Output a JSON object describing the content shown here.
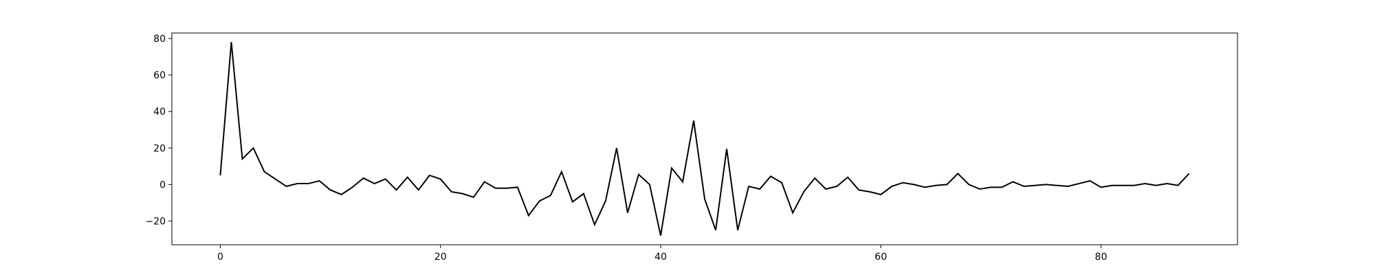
{
  "chart_data": {
    "type": "line",
    "title": "",
    "xlabel": "",
    "ylabel": "",
    "xlim": [
      -4.4,
      92.4
    ],
    "ylim": [
      -33,
      83
    ],
    "x_ticks": [
      0,
      20,
      40,
      60,
      80
    ],
    "x_tick_labels": [
      "0",
      "20",
      "40",
      "60",
      "80"
    ],
    "y_ticks": [
      -20,
      0,
      20,
      40,
      60,
      80
    ],
    "y_tick_labels": [
      "−20",
      "0",
      "20",
      "40",
      "60",
      "80"
    ],
    "grid": false,
    "line_color": "#000000",
    "series": [
      {
        "x": [
          0,
          1,
          2,
          3,
          4,
          5,
          6,
          7,
          8,
          9,
          10,
          11,
          12,
          13,
          14,
          15,
          16,
          17,
          18,
          19,
          20,
          21,
          22,
          23,
          24,
          25,
          26,
          27,
          28,
          29,
          30,
          31,
          32,
          33,
          34,
          35,
          36,
          37,
          38,
          39,
          40,
          41,
          42,
          43,
          44,
          45,
          46,
          47,
          48,
          49,
          50,
          51,
          52,
          53,
          54,
          55,
          56,
          57,
          58,
          59,
          60,
          61,
          62,
          63,
          64,
          65,
          66,
          67,
          68,
          69,
          70,
          71,
          72,
          73,
          74,
          75,
          76,
          77,
          78,
          79,
          80,
          81,
          82,
          83,
          84,
          85,
          86,
          87,
          88
        ],
        "values": [
          5,
          78,
          14,
          20,
          7,
          3,
          -1,
          0.5,
          0.5,
          2,
          -3,
          -5.5,
          -1.5,
          3.5,
          0.5,
          3,
          -3,
          4,
          -3,
          5,
          3,
          -4,
          -5,
          -7,
          1.5,
          -2,
          -2,
          -1.5,
          -17,
          -9,
          -6,
          7,
          -9.5,
          -5,
          -22,
          -9,
          20,
          -15.5,
          5.5,
          0,
          -28,
          9,
          1.5,
          35,
          -8,
          -25,
          19.5,
          -25,
          -1,
          -2.5,
          4.5,
          1,
          -15.5,
          -4,
          3.5,
          -2.5,
          -1,
          4,
          -3,
          -4,
          -5.5,
          -1,
          1,
          0,
          -1.5,
          -0.5,
          0,
          6,
          0,
          -2.5,
          -1.5,
          -1.5,
          1.5,
          -1,
          -0.5,
          0,
          -0.5,
          -1,
          0.5,
          2,
          -1.5,
          -0.5,
          -0.5,
          -0.5,
          0.5,
          -0.5,
          0.5,
          -0.5,
          6
        ]
      }
    ]
  }
}
